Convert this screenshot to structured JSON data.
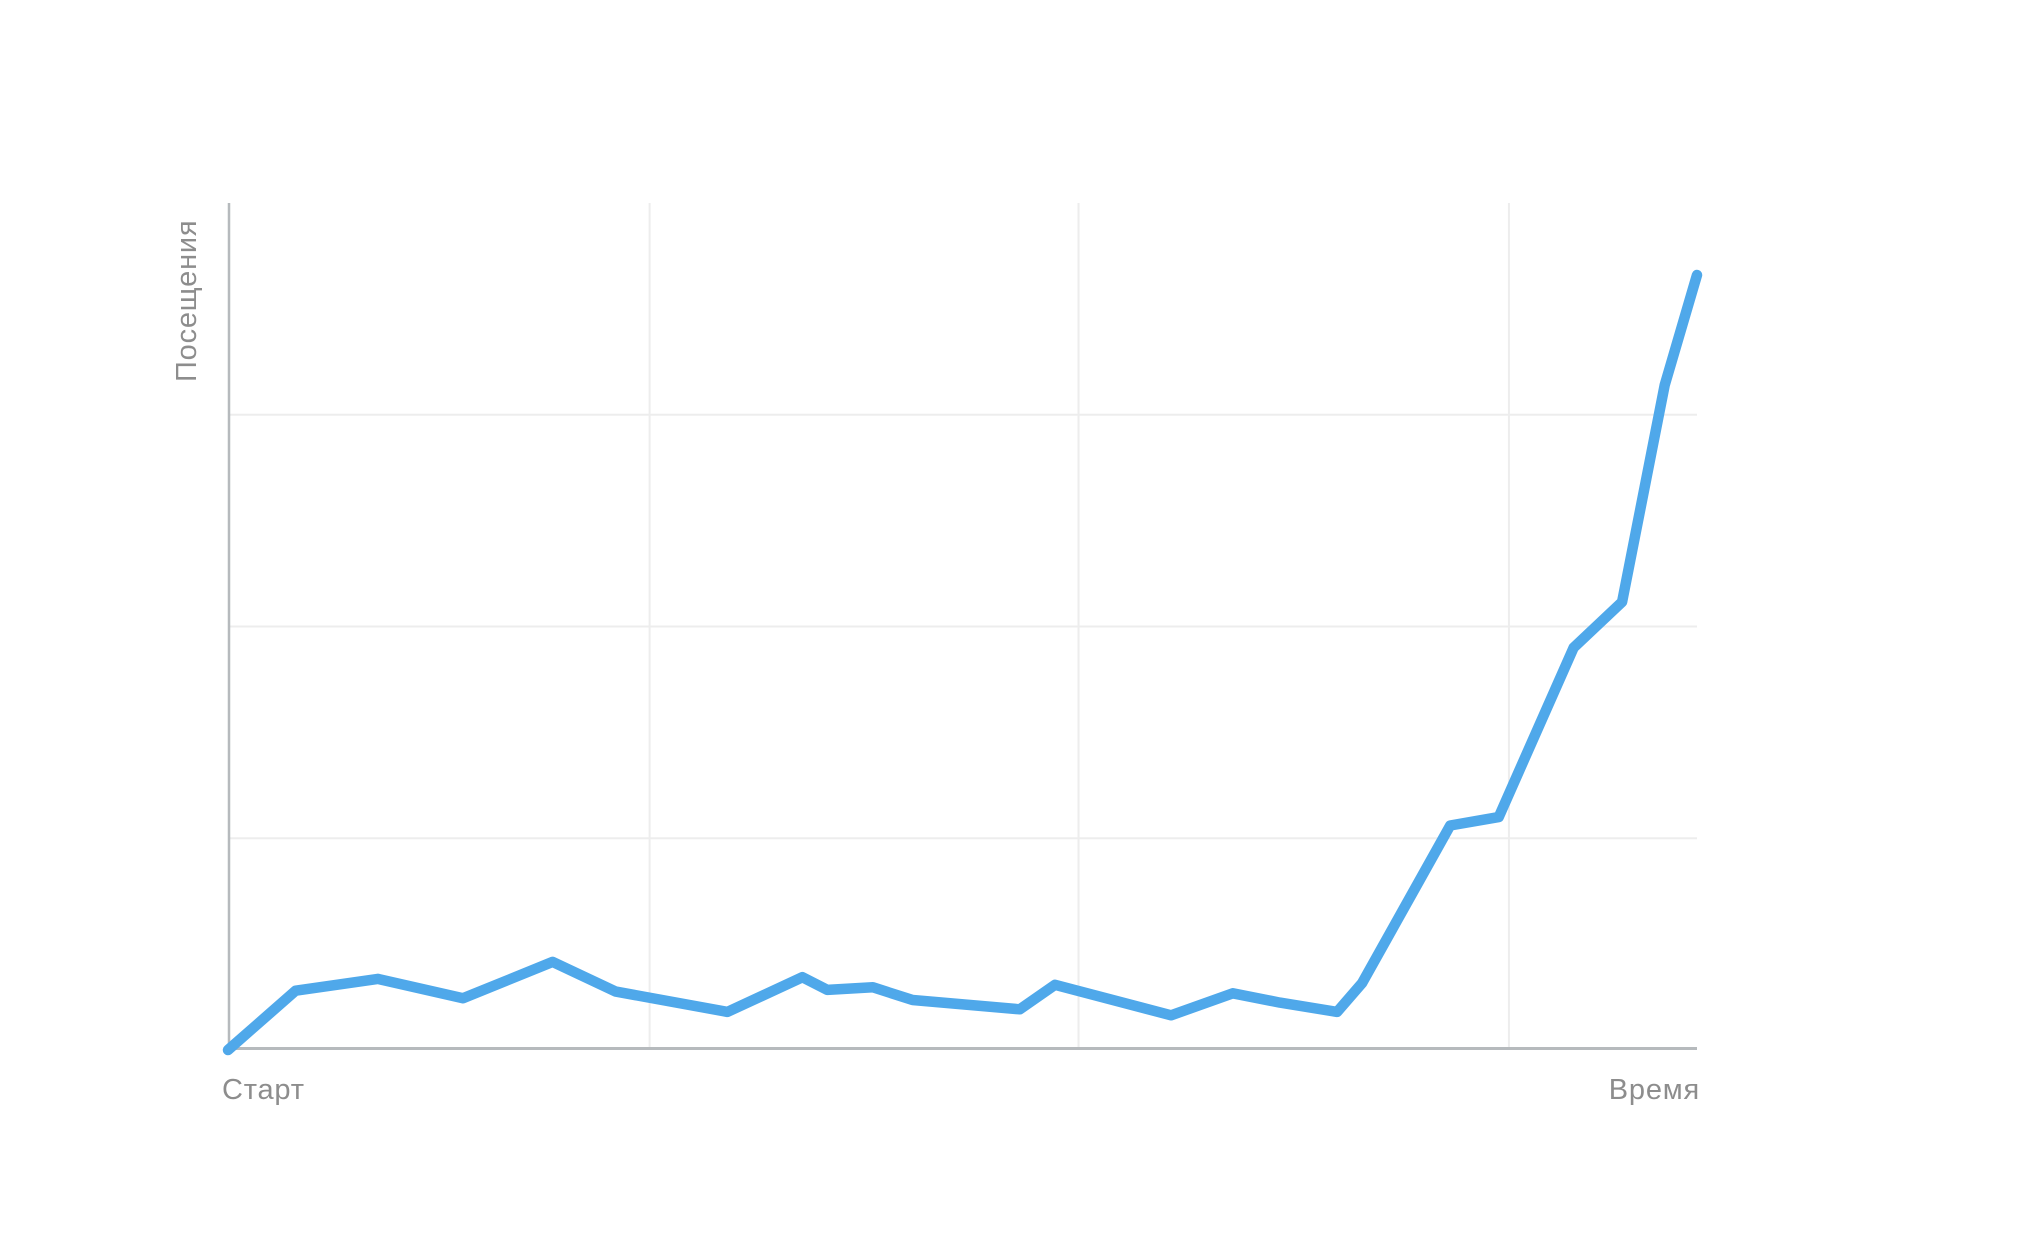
{
  "page": {
    "background": "#ffffff"
  },
  "chart_data": {
    "type": "line",
    "title": "",
    "ylabel": "Посещения",
    "xlabel_start": "Старт",
    "xlabel_end": "Время",
    "x_range": [
      0,
      100
    ],
    "y_range": [
      0,
      100
    ],
    "grid": true,
    "legend": "none",
    "x_gridlines": [
      28.7,
      57.9,
      87.2
    ],
    "y_gridlines": [
      25,
      50,
      75
    ],
    "line_color": "#4FA8EA",
    "axis_color": "#b6babd",
    "grid_color": "#ededed",
    "label_color": "#8d8d8d",
    "series": [
      {
        "name": "Посещения",
        "points": [
          [
            0,
            0
          ],
          [
            4.6,
            7.0
          ],
          [
            10.2,
            8.4
          ],
          [
            16.0,
            6.1
          ],
          [
            22.1,
            10.4
          ],
          [
            26.4,
            6.9
          ],
          [
            34.0,
            4.5
          ],
          [
            39.1,
            8.6
          ],
          [
            40.8,
            7.1
          ],
          [
            43.9,
            7.4
          ],
          [
            46.6,
            5.9
          ],
          [
            53.9,
            4.8
          ],
          [
            56.3,
            7.7
          ],
          [
            64.2,
            4.1
          ],
          [
            68.4,
            6.7
          ],
          [
            71.6,
            5.6
          ],
          [
            75.5,
            4.5
          ],
          [
            77.2,
            7.9
          ],
          [
            83.2,
            26.5
          ],
          [
            86.5,
            27.5
          ],
          [
            91.6,
            47.5
          ],
          [
            94.9,
            52.9
          ],
          [
            97.8,
            78.5
          ],
          [
            100,
            91.5
          ]
        ]
      }
    ]
  }
}
